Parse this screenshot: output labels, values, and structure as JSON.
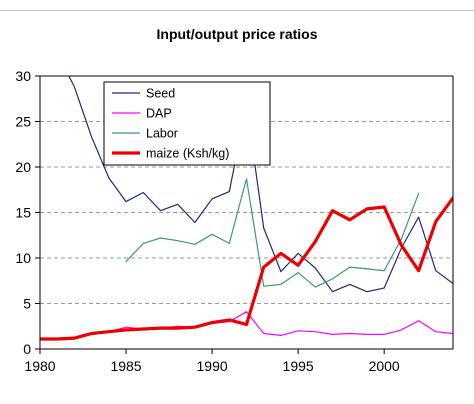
{
  "chart_data": {
    "type": "line",
    "title": "Input/output price ratios",
    "xlabel": "",
    "ylabel": "",
    "xlim": [
      1980,
      2004
    ],
    "ylim": [
      0,
      30
    ],
    "x_ticks": [
      1980,
      1985,
      1990,
      1995,
      2000
    ],
    "y_ticks": [
      0,
      5,
      10,
      15,
      20,
      25,
      30
    ],
    "grid": "horizontal-dashed",
    "legend_position": "top-left",
    "series": [
      {
        "name": "Seed",
        "color": "#1f2a7a",
        "width": 1.2,
        "points": [
          [
            1981,
            32.5
          ],
          [
            1982,
            28.8
          ],
          [
            1983,
            23.3
          ],
          [
            1984,
            18.8
          ],
          [
            1985,
            16.2
          ],
          [
            1986,
            17.2
          ],
          [
            1987,
            15.2
          ],
          [
            1988,
            15.9
          ],
          [
            1989,
            13.9
          ],
          [
            1990,
            16.5
          ],
          [
            1991,
            17.3
          ],
          [
            1992,
            26.9
          ],
          [
            1993,
            13.3
          ],
          [
            1994,
            8.5
          ],
          [
            1995,
            10.5
          ],
          [
            1996,
            8.9
          ],
          [
            1997,
            6.3
          ],
          [
            1998,
            7.1
          ],
          [
            1999,
            6.3
          ],
          [
            2000,
            6.7
          ],
          [
            2001,
            11.1
          ],
          [
            2002,
            14.5
          ],
          [
            2003,
            8.6
          ],
          [
            2004,
            7.2
          ]
        ]
      },
      {
        "name": "DAP",
        "color": "#ff00ff",
        "width": 1.2,
        "points": [
          [
            1980,
            1.0
          ],
          [
            1981,
            1.0
          ],
          [
            1982,
            1.1
          ],
          [
            1983,
            1.6
          ],
          [
            1984,
            1.9
          ],
          [
            1985,
            2.4
          ],
          [
            1986,
            2.2
          ],
          [
            1987,
            2.3
          ],
          [
            1988,
            2.5
          ],
          [
            1989,
            2.4
          ],
          [
            1990,
            2.8
          ],
          [
            1991,
            3.0
          ],
          [
            1992,
            4.1
          ],
          [
            1993,
            1.7
          ],
          [
            1994,
            1.5
          ],
          [
            1995,
            2.0
          ],
          [
            1996,
            1.9
          ],
          [
            1997,
            1.6
          ],
          [
            1998,
            1.7
          ],
          [
            1999,
            1.6
          ],
          [
            2000,
            1.6
          ],
          [
            2001,
            2.1
          ],
          [
            2002,
            3.1
          ],
          [
            2003,
            1.9
          ],
          [
            2004,
            1.7
          ]
        ]
      },
      {
        "name": "Labor",
        "color": "#3a9a78",
        "width": 1.2,
        "points": [
          [
            1985,
            9.6
          ],
          [
            1986,
            11.6
          ],
          [
            1987,
            12.2
          ],
          [
            1988,
            11.9
          ],
          [
            1989,
            11.5
          ],
          [
            1990,
            12.6
          ],
          [
            1991,
            11.6
          ],
          [
            1992,
            18.7
          ],
          [
            1993,
            6.9
          ],
          [
            1994,
            7.1
          ],
          [
            1995,
            8.4
          ],
          [
            1996,
            6.8
          ],
          [
            1997,
            7.7
          ],
          [
            1998,
            9.0
          ],
          [
            1999,
            8.8
          ],
          [
            2000,
            8.6
          ],
          [
            2001,
            12.1
          ],
          [
            2002,
            17.1
          ]
        ]
      },
      {
        "name": "maize (Ksh/kg)",
        "color": "#ee0000",
        "width": 3.2,
        "points": [
          [
            1980,
            1.1
          ],
          [
            1981,
            1.1
          ],
          [
            1982,
            1.2
          ],
          [
            1983,
            1.7
          ],
          [
            1984,
            1.9
          ],
          [
            1985,
            2.1
          ],
          [
            1986,
            2.2
          ],
          [
            1987,
            2.3
          ],
          [
            1988,
            2.3
          ],
          [
            1989,
            2.4
          ],
          [
            1990,
            2.9
          ],
          [
            1991,
            3.2
          ],
          [
            1992,
            2.7
          ],
          [
            1993,
            9.0
          ],
          [
            1994,
            10.5
          ],
          [
            1995,
            9.2
          ],
          [
            1996,
            11.8
          ],
          [
            1997,
            15.2
          ],
          [
            1998,
            14.2
          ],
          [
            1999,
            15.4
          ],
          [
            2000,
            15.6
          ],
          [
            2001,
            11.4
          ],
          [
            2002,
            8.6
          ],
          [
            2003,
            14.0
          ],
          [
            2004,
            16.6
          ]
        ]
      }
    ]
  }
}
